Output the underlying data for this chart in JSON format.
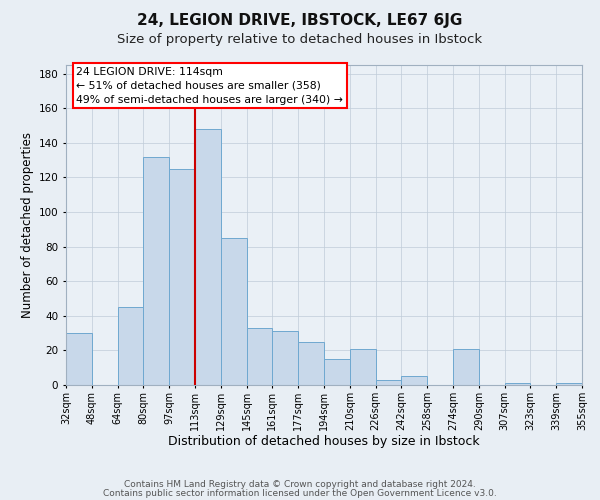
{
  "title": "24, LEGION DRIVE, IBSTOCK, LE67 6JG",
  "subtitle": "Size of property relative to detached houses in Ibstock",
  "xlabel": "Distribution of detached houses by size in Ibstock",
  "ylabel": "Number of detached properties",
  "bar_vals": [
    30,
    0,
    45,
    132,
    125,
    148,
    85,
    33,
    31,
    25,
    15,
    21,
    3,
    5,
    0,
    21,
    0,
    1,
    0,
    1
  ],
  "bin_labels": [
    "32sqm",
    "48sqm",
    "64sqm",
    "80sqm",
    "97sqm",
    "113sqm",
    "129sqm",
    "145sqm",
    "161sqm",
    "177sqm",
    "194sqm",
    "210sqm",
    "226sqm",
    "242sqm",
    "258sqm",
    "274sqm",
    "290sqm",
    "307sqm",
    "323sqm",
    "339sqm",
    "355sqm"
  ],
  "bar_color": "#c8d8ea",
  "bar_edge_color": "#6fa8d0",
  "vline_pos": 5,
  "vline_color": "#cc0000",
  "annotation_line1": "24 LEGION DRIVE: 114sqm",
  "annotation_line2": "← 51% of detached houses are smaller (358)",
  "annotation_line3": "49% of semi-detached houses are larger (340) →",
  "ylim": [
    0,
    185
  ],
  "yticks": [
    0,
    20,
    40,
    60,
    80,
    100,
    120,
    140,
    160,
    180
  ],
  "bg_color": "#e8eef4",
  "plot_bg_color": "#eaf0f6",
  "grid_color": "#c0ccd8",
  "title_fontsize": 11,
  "subtitle_fontsize": 9.5,
  "xlabel_fontsize": 9,
  "ylabel_fontsize": 8.5,
  "tick_fontsize": 7,
  "footer_line1": "Contains HM Land Registry data © Crown copyright and database right 2024.",
  "footer_line2": "Contains public sector information licensed under the Open Government Licence v3.0.",
  "footer_fontsize": 6.5
}
